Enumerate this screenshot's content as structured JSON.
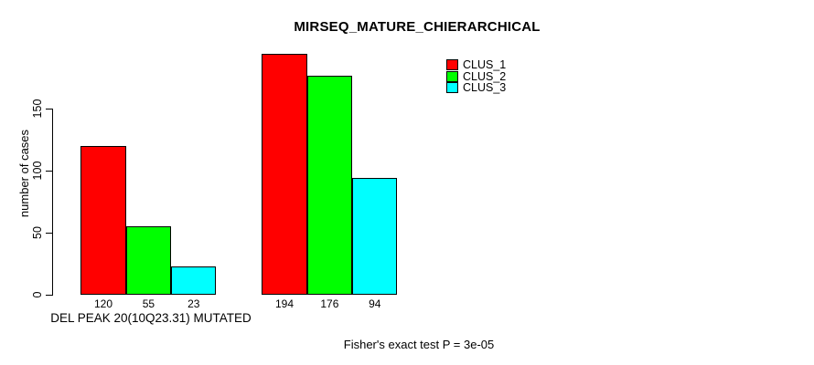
{
  "chart_data": {
    "type": "bar",
    "title": "MIRSEQ_MATURE_CHIERARCHICAL",
    "ylabel": "number of cases",
    "xlabel": "",
    "ylim": [
      0,
      200
    ],
    "yticks": [
      0,
      50,
      100,
      150
    ],
    "grid": false,
    "legend_position": "top-right",
    "categories": [
      "DEL PEAK 20(10Q23.31) MUTATED",
      ""
    ],
    "series": [
      {
        "name": "CLUS_1",
        "color": "#ff0000",
        "values": [
          120,
          194
        ]
      },
      {
        "name": "CLUS_2",
        "color": "#00ff00",
        "values": [
          55,
          176
        ]
      },
      {
        "name": "CLUS_3",
        "color": "#00ffff",
        "values": [
          23,
          94
        ]
      }
    ],
    "bar_value_labels": [
      [
        120,
        55,
        23
      ],
      [
        194,
        176,
        94
      ]
    ],
    "annotation": "Fisher's exact test P = 3e-05"
  },
  "labels": {
    "group1": "DEL PEAK 20(10Q23.31) MUTATED",
    "footer": "Fisher's exact test P = 3e-05"
  },
  "legend": {
    "items": [
      {
        "label": "CLUS_1",
        "color": "#ff0000"
      },
      {
        "label": "CLUS_2",
        "color": "#00ff00"
      },
      {
        "label": "CLUS_3",
        "color": "#00ffff"
      }
    ]
  },
  "colors": {
    "background": "#ffffff",
    "axis": "#000000",
    "text": "#000000",
    "bar_border": "#000000"
  }
}
